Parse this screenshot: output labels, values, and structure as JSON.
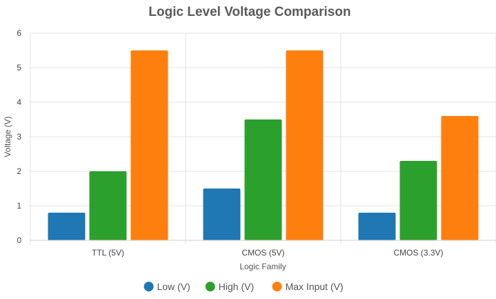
{
  "chart_data": {
    "type": "bar",
    "title": "Logic Level Voltage Comparison",
    "xlabel": "Logic Family",
    "ylabel": "Voltage (V)",
    "categories": [
      "TTL (5V)",
      "CMOS (5V)",
      "CMOS (3.3V)"
    ],
    "ylim": [
      0,
      6
    ],
    "yticks": [
      0,
      1,
      2,
      3,
      4,
      5,
      6
    ],
    "grid": true,
    "legend_position": "bottom",
    "series": [
      {
        "name": "Low (V)",
        "color": "#1f77b4",
        "values": [
          0.8,
          1.5,
          0.8
        ]
      },
      {
        "name": "High (V)",
        "color": "#2ca02c",
        "values": [
          2.0,
          3.5,
          2.3
        ]
      },
      {
        "name": "Max Input (V)",
        "color": "#ff7f0e",
        "values": [
          5.5,
          5.5,
          3.6
        ]
      }
    ]
  }
}
